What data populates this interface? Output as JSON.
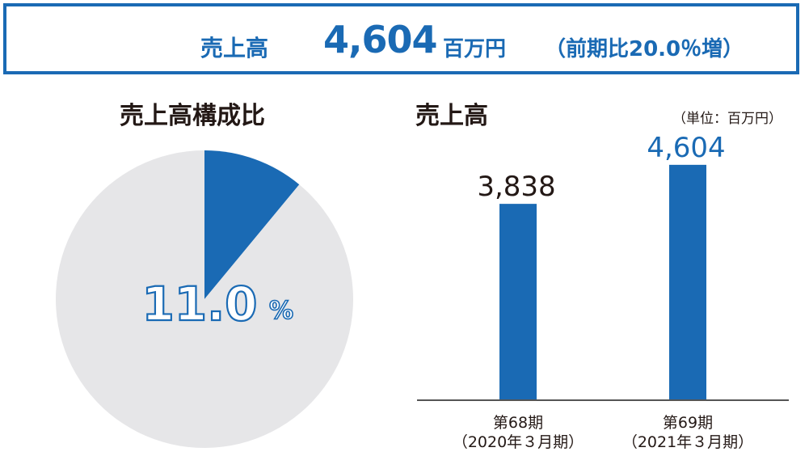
{
  "banner": {
    "label": "売上高",
    "value": "4,604",
    "unit": "百万円",
    "change": "（前期比20.0％増）"
  },
  "colors": {
    "accent": "#1a6ab4",
    "pie_rest": "#e6e6e8"
  },
  "chart_data": [
    {
      "type": "pie",
      "title": "売上高構成比",
      "slices": [
        {
          "value": 11.0,
          "color": "#1a6ab4"
        },
        {
          "value": 89.0,
          "color": "#e6e6e8"
        }
      ],
      "center_label": "11.0",
      "center_unit": "%"
    },
    {
      "type": "bar",
      "title": "売上高",
      "unit_note": "（単位：百万円）",
      "categories": [
        {
          "line1": "第68期",
          "line2": "（2020年３月期）"
        },
        {
          "line1": "第69期",
          "line2": "（2021年３月期）"
        }
      ],
      "values": [
        3838,
        4604
      ],
      "value_labels": [
        "3,838",
        "4,604"
      ],
      "ylim": [
        0,
        5300
      ]
    }
  ]
}
